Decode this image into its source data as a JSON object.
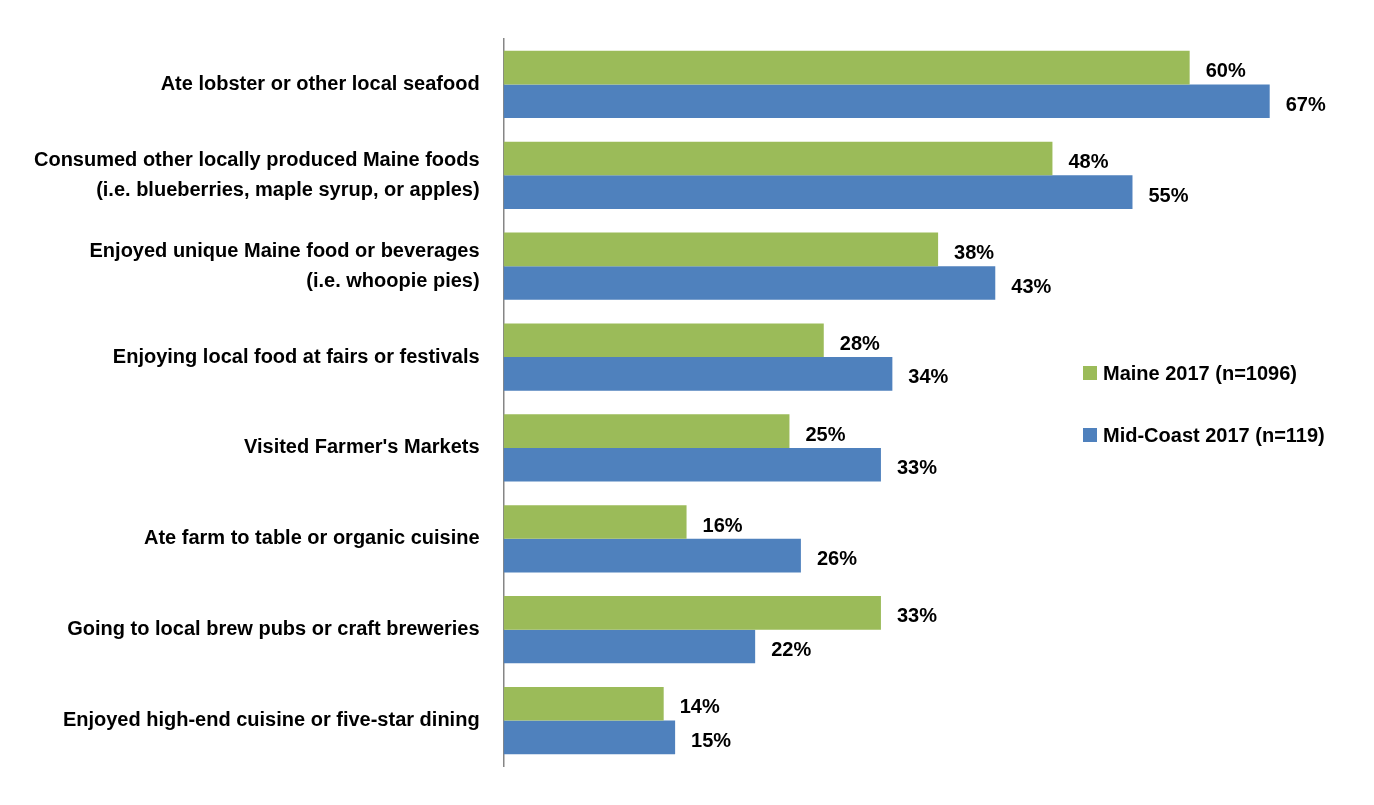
{
  "chart_data": {
    "type": "bar",
    "orientation": "horizontal",
    "categories": [
      "Ate lobster or other local seafood",
      "Consumed other locally produced Maine foods\n(i.e. blueberries, maple syrup, or apples)",
      "Enjoyed unique Maine food or beverages\n(i.e. whoopie pies)",
      "Enjoying local food at fairs or festivals",
      "Visited Farmer's Markets",
      "Ate farm to table or organic cuisine",
      "Going to local brew pubs or craft breweries",
      "Enjoyed high-end cuisine or five-star dining"
    ],
    "series": [
      {
        "name": "Maine 2017 (n=1096)",
        "color": "#9bbb59",
        "values": [
          60,
          48,
          38,
          28,
          25,
          16,
          33,
          14
        ],
        "value_labels": [
          "60%",
          "48%",
          "38%",
          "28%",
          "25%",
          "16%",
          "33%",
          "14%"
        ]
      },
      {
        "name": "Mid-Coast 2017 (n=119)",
        "color": "#4f81bd",
        "values": [
          67,
          55,
          43,
          34,
          33,
          26,
          22,
          15
        ],
        "value_labels": [
          "67%",
          "55%",
          "43%",
          "34%",
          "33%",
          "26%",
          "22%",
          "15%"
        ]
      }
    ],
    "tick_labels": "y",
    "grid": false,
    "legend": "right"
  }
}
